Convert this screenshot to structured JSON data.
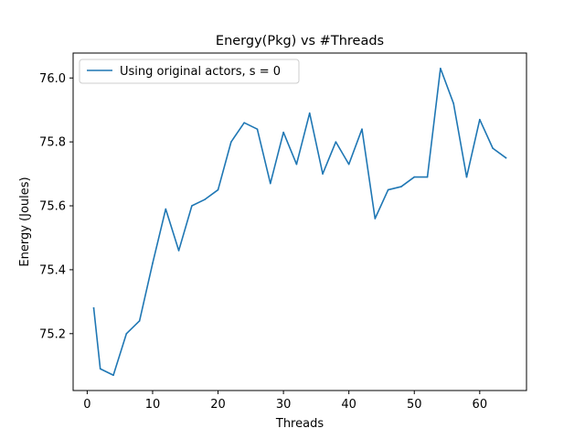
{
  "chart_data": {
    "type": "line",
    "title": "Energy(Pkg) vs #Threads",
    "xlabel": "Threads",
    "ylabel": "Energy (Joules)",
    "xlim": [
      -2.15,
      67.15
    ],
    "ylim": [
      75.022,
      76.078
    ],
    "xticks": [
      0,
      10,
      20,
      30,
      40,
      50,
      60
    ],
    "yticks": [
      75.2,
      75.4,
      75.6,
      75.8,
      76.0
    ],
    "xtick_labels": [
      "0",
      "10",
      "20",
      "30",
      "40",
      "50",
      "60"
    ],
    "ytick_labels": [
      "75.2",
      "75.4",
      "75.6",
      "75.8",
      "76.0"
    ],
    "grid": false,
    "legend_position": "upper-left",
    "series": [
      {
        "name": "Using original actors, s = 0",
        "color": "#1f77b4",
        "x": [
          1,
          2,
          4,
          6,
          8,
          10,
          12,
          14,
          16,
          18,
          20,
          22,
          24,
          26,
          28,
          30,
          32,
          34,
          36,
          38,
          40,
          42,
          44,
          46,
          48,
          50,
          52,
          54,
          56,
          58,
          60,
          62,
          64
        ],
        "y": [
          75.28,
          75.09,
          75.07,
          75.2,
          75.24,
          75.42,
          75.59,
          75.46,
          75.6,
          75.62,
          75.65,
          75.8,
          75.86,
          75.84,
          75.67,
          75.83,
          75.73,
          75.89,
          75.7,
          75.8,
          75.73,
          75.84,
          75.56,
          75.65,
          75.66,
          75.69,
          75.69,
          76.03,
          75.92,
          75.69,
          75.87,
          75.78,
          75.75
        ]
      }
    ]
  }
}
